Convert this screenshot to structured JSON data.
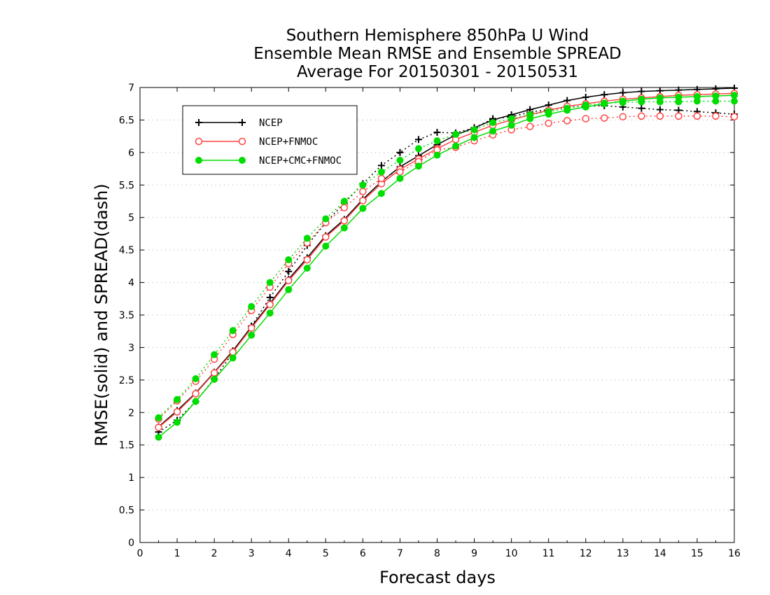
{
  "chart_data": {
    "type": "line",
    "title": [
      "Southern Hemisphere 850hPa U Wind",
      "Ensemble Mean RMSE and Ensemble SPREAD",
      "Average For 20150301 - 20150531"
    ],
    "xlabel": "Forecast days",
    "ylabel": "RMSE(solid) and SPREAD(dash)",
    "xlim": [
      0,
      16
    ],
    "ylim": [
      0,
      7
    ],
    "xticks": [
      "0",
      "1",
      "2",
      "3",
      "4",
      "5",
      "6",
      "7",
      "8",
      "9",
      "10",
      "11",
      "12",
      "13",
      "14",
      "15",
      "16"
    ],
    "yticks": [
      "0",
      "0.5",
      "1",
      "1.5",
      "2",
      "2.5",
      "3",
      "3.5",
      "4",
      "4.5",
      "5",
      "5.5",
      "6",
      "6.5",
      "7"
    ],
    "grid": "horizontal-dotted",
    "legend_position": "top-left",
    "x": [
      0.5,
      1,
      1.5,
      2,
      2.5,
      3,
      3.5,
      4,
      4.5,
      5,
      5.5,
      6,
      6.5,
      7,
      7.5,
      8,
      8.5,
      9,
      9.5,
      10,
      10.5,
      11,
      11.5,
      12,
      12.5,
      13,
      13.5,
      14,
      14.5,
      15,
      15.5,
      16
    ],
    "series": [
      {
        "name": "NCEP",
        "color": "#000000",
        "marker": "plus",
        "rmse": [
          1.78,
          2.03,
          2.3,
          2.62,
          2.95,
          3.32,
          3.68,
          4.05,
          4.38,
          4.72,
          4.97,
          5.28,
          5.55,
          5.78,
          5.95,
          6.12,
          6.27,
          6.38,
          6.5,
          6.58,
          6.66,
          6.73,
          6.8,
          6.85,
          6.89,
          6.92,
          6.94,
          6.95,
          6.96,
          6.97,
          6.98,
          6.99
        ],
        "spread": [
          1.7,
          1.88,
          2.17,
          2.52,
          2.92,
          3.33,
          3.77,
          4.17,
          4.57,
          4.92,
          5.22,
          5.52,
          5.8,
          6.0,
          6.2,
          6.31,
          6.3,
          6.38,
          6.52,
          6.55,
          6.62,
          6.66,
          6.7,
          6.71,
          6.72,
          6.7,
          6.68,
          6.66,
          6.65,
          6.63,
          6.61,
          6.59
        ]
      },
      {
        "name": "NCEP+FNMOC",
        "color": "#ff4444",
        "marker": "open-circle",
        "rmse": [
          1.77,
          2.01,
          2.29,
          2.61,
          2.93,
          3.3,
          3.66,
          4.03,
          4.35,
          4.7,
          4.95,
          5.26,
          5.52,
          5.74,
          5.9,
          6.06,
          6.2,
          6.31,
          6.42,
          6.5,
          6.58,
          6.65,
          6.71,
          6.75,
          6.79,
          6.82,
          6.84,
          6.86,
          6.88,
          6.89,
          6.9,
          6.91
        ],
        "spread": [
          1.9,
          2.18,
          2.48,
          2.82,
          3.2,
          3.57,
          3.93,
          4.29,
          4.61,
          4.92,
          5.15,
          5.4,
          5.6,
          5.7,
          5.86,
          6.04,
          6.08,
          6.18,
          6.27,
          6.35,
          6.4,
          6.45,
          6.49,
          6.52,
          6.53,
          6.55,
          6.56,
          6.56,
          6.56,
          6.56,
          6.56,
          6.55
        ]
      },
      {
        "name": "NCEP+CMC+FNMOC",
        "color": "#00dd00",
        "marker": "filled-circle",
        "rmse": [
          1.62,
          1.85,
          2.17,
          2.51,
          2.84,
          3.19,
          3.53,
          3.89,
          4.22,
          4.56,
          4.84,
          5.14,
          5.37,
          5.6,
          5.79,
          5.96,
          6.1,
          6.23,
          6.33,
          6.42,
          6.52,
          6.59,
          6.65,
          6.7,
          6.75,
          6.79,
          6.82,
          6.84,
          6.85,
          6.86,
          6.87,
          6.88
        ],
        "spread": [
          1.92,
          2.2,
          2.52,
          2.89,
          3.26,
          3.63,
          4.0,
          4.35,
          4.68,
          4.98,
          5.25,
          5.5,
          5.7,
          5.88,
          6.06,
          6.18,
          6.28,
          6.35,
          6.46,
          6.52,
          6.58,
          6.63,
          6.68,
          6.73,
          6.76,
          6.77,
          6.78,
          6.78,
          6.78,
          6.79,
          6.79,
          6.79
        ]
      }
    ]
  }
}
